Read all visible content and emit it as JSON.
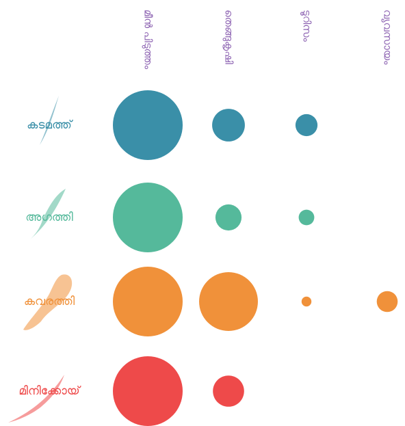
{
  "chart_data": {
    "type": "bubble-matrix",
    "categories": [
      "മീൻ പിടുത്തം",
      "തെങ്ങുകൃഷി",
      "ടൂറിസം",
      "വ്യവസായം"
    ],
    "category_color": "#8a5fb0",
    "series": [
      {
        "name": "കടമത്ത്",
        "color": "#3a8fa8",
        "values": [
          100,
          22,
          10,
          null
        ]
      },
      {
        "name": "അഗത്തി",
        "color": "#55b99b",
        "values": [
          100,
          14,
          5,
          null
        ]
      },
      {
        "name": "കവരത്തി",
        "color": "#f0913a",
        "values": [
          100,
          71,
          2,
          9
        ]
      },
      {
        "name": "മിനിക്കോയ്",
        "color": "#ee4a4a",
        "values": [
          100,
          20,
          null,
          null
        ]
      }
    ]
  }
}
